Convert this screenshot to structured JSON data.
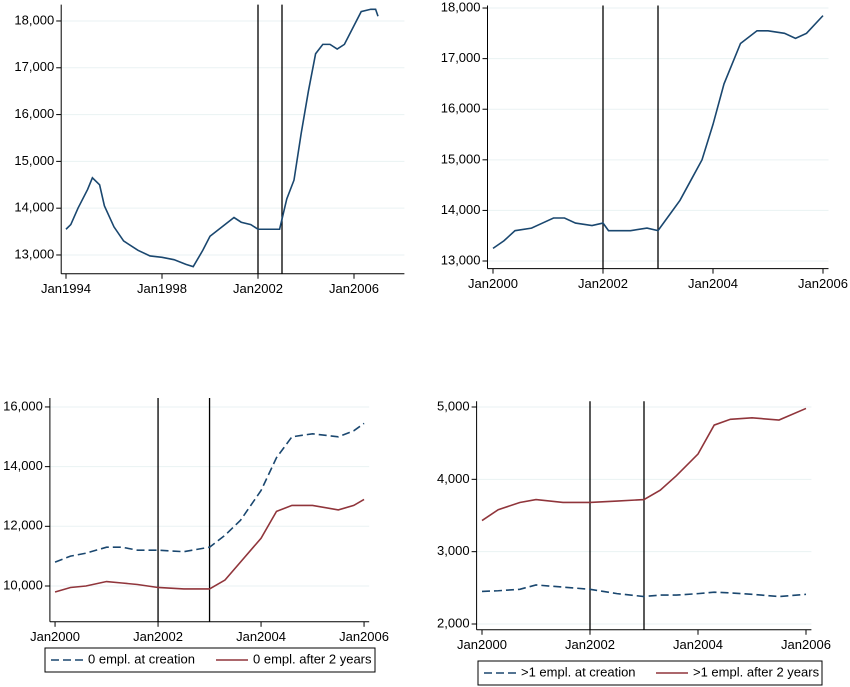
{
  "chart_data": [
    {
      "type": "line",
      "x": [
        1994.0,
        1994.2,
        1994.5,
        1994.9,
        1995.1,
        1995.4,
        1995.6,
        1996.0,
        1996.4,
        1997.0,
        1997.5,
        1998.0,
        1998.5,
        1999.0,
        1999.3,
        1999.7,
        2000.0,
        2000.5,
        2001.0,
        2001.3,
        2001.7,
        2002.0,
        2002.5,
        2002.9,
        2003.2,
        2003.5,
        2003.8,
        2004.1,
        2004.4,
        2004.7,
        2005.0,
        2005.3,
        2005.6,
        2006.0,
        2006.3,
        2006.7,
        2006.9,
        2007.0
      ],
      "series": [
        {
          "color": "#1a476f",
          "values": [
            13550,
            13650,
            14000,
            14400,
            14650,
            14500,
            14050,
            13600,
            13300,
            13100,
            12980,
            12950,
            12900,
            12800,
            12750,
            13100,
            13400,
            13600,
            13800,
            13700,
            13650,
            13550,
            13550,
            13550,
            14200,
            14600,
            15600,
            16500,
            17300,
            17500,
            17500,
            17400,
            17500,
            17900,
            18200,
            18250,
            18250,
            18100
          ]
        }
      ],
      "xlim": [
        1993.8,
        2008.1
      ],
      "xticks": [
        {
          "value": 1994,
          "label": "Jan1994"
        },
        {
          "value": 1998,
          "label": "Jan1998"
        },
        {
          "value": 2002,
          "label": "Jan2002"
        },
        {
          "value": 2006,
          "label": "Jan2006"
        }
      ],
      "ylim": [
        12600,
        18350
      ],
      "yticks": [
        {
          "value": 13000,
          "label": "13,000"
        },
        {
          "value": 14000,
          "label": "14,000"
        },
        {
          "value": 15000,
          "label": "15,000"
        },
        {
          "value": 16000,
          "label": "16,000"
        },
        {
          "value": 17000,
          "label": "17,000"
        },
        {
          "value": 18000,
          "label": "18,000"
        }
      ],
      "vlines": [
        2002,
        2003
      ],
      "grid": true
    },
    {
      "type": "line",
      "x": [
        2000.0,
        2000.2,
        2000.4,
        2000.7,
        2000.9,
        2001.1,
        2001.3,
        2001.5,
        2001.8,
        2002.0,
        2002.1,
        2002.5,
        2002.8,
        2003.0,
        2003.2,
        2003.4,
        2003.6,
        2003.8,
        2004.0,
        2004.2,
        2004.5,
        2004.8,
        2005.0,
        2005.3,
        2005.5,
        2005.7,
        2006.0
      ],
      "series": [
        {
          "color": "#1a476f",
          "values": [
            13250,
            13400,
            13600,
            13650,
            13750,
            13850,
            13850,
            13750,
            13700,
            13750,
            13600,
            13600,
            13650,
            13600,
            13900,
            14200,
            14600,
            15000,
            15700,
            16500,
            17300,
            17550,
            17550,
            17500,
            17400,
            17500,
            17850
          ]
        }
      ],
      "xlim": [
        1999.9,
        2006.1
      ],
      "xticks": [
        {
          "value": 2000,
          "label": "Jan2000"
        },
        {
          "value": 2002,
          "label": "Jan2002"
        },
        {
          "value": 2004,
          "label": "Jan2004"
        },
        {
          "value": 2006,
          "label": "Jan2006"
        }
      ],
      "ylim": [
        12850,
        18050
      ],
      "yticks": [
        {
          "value": 13000,
          "label": "13,000"
        },
        {
          "value": 14000,
          "label": "14,000"
        },
        {
          "value": 15000,
          "label": "15,000"
        },
        {
          "value": 16000,
          "label": "16,000"
        },
        {
          "value": 17000,
          "label": "17,000"
        },
        {
          "value": 18000,
          "label": "18,000"
        }
      ],
      "vlines": [
        2002,
        2003
      ],
      "grid": true
    },
    {
      "type": "line",
      "x": [
        2000.0,
        2000.3,
        2000.6,
        2001.0,
        2001.3,
        2001.6,
        2002.0,
        2002.5,
        2003.0,
        2003.3,
        2003.6,
        2004.0,
        2004.3,
        2004.6,
        2005.0,
        2005.5,
        2005.8,
        2006.0
      ],
      "series": [
        {
          "name": "0 empl. at creation",
          "color": "#1a476f",
          "dashed": true,
          "values": [
            10800,
            11000,
            11100,
            11300,
            11300,
            11200,
            11200,
            11150,
            11300,
            11700,
            12200,
            13200,
            14300,
            15000,
            15100,
            15000,
            15200,
            15450
          ]
        },
        {
          "name": "0 empl. after 2 years",
          "color": "#90353b",
          "dashed": false,
          "values": [
            9800,
            9950,
            10000,
            10150,
            10100,
            10050,
            9950,
            9900,
            9900,
            10200,
            10800,
            11600,
            12500,
            12700,
            12700,
            12550,
            12700,
            12900
          ]
        }
      ],
      "xlim": [
        1999.9,
        2006.1
      ],
      "xticks": [
        {
          "value": 2000,
          "label": "Jan2000"
        },
        {
          "value": 2002,
          "label": "Jan2002"
        },
        {
          "value": 2004,
          "label": "Jan2004"
        },
        {
          "value": 2006,
          "label": "Jan2006"
        }
      ],
      "ylim": [
        8800,
        16300
      ],
      "yticks": [
        {
          "value": 10000,
          "label": "10,000"
        },
        {
          "value": 12000,
          "label": "12,000"
        },
        {
          "value": 14000,
          "label": "14,000"
        },
        {
          "value": 16000,
          "label": "16,000"
        }
      ],
      "vlines": [
        2002,
        2003
      ],
      "grid": true,
      "legend": "bottom"
    },
    {
      "type": "line",
      "x": [
        2000.0,
        2000.3,
        2000.7,
        2001.0,
        2001.5,
        2002.0,
        2002.5,
        2003.0,
        2003.3,
        2003.6,
        2004.0,
        2004.3,
        2004.6,
        2005.0,
        2005.5,
        2006.0
      ],
      "series": [
        {
          "name": ">1 empl. at creation",
          "color": "#1a476f",
          "dashed": true,
          "values": [
            2450,
            2460,
            2480,
            2540,
            2510,
            2480,
            2420,
            2380,
            2400,
            2400,
            2420,
            2440,
            2430,
            2410,
            2380,
            2410
          ]
        },
        {
          "name": ">1 empl. after 2 years",
          "color": "#90353b",
          "dashed": false,
          "values": [
            3430,
            3580,
            3680,
            3720,
            3680,
            3680,
            3700,
            3720,
            3850,
            4050,
            4350,
            4750,
            4830,
            4850,
            4820,
            4980
          ]
        }
      ],
      "xlim": [
        1999.9,
        2006.1
      ],
      "xticks": [
        {
          "value": 2000,
          "label": "Jan2000"
        },
        {
          "value": 2002,
          "label": "Jan2002"
        },
        {
          "value": 2004,
          "label": "Jan2004"
        },
        {
          "value": 2006,
          "label": "Jan2006"
        }
      ],
      "ylim": [
        1920,
        5080
      ],
      "yticks": [
        {
          "value": 2000,
          "label": "2,000"
        },
        {
          "value": 3000,
          "label": "3,000"
        },
        {
          "value": 4000,
          "label": "4,000"
        },
        {
          "value": 5000,
          "label": "5,000"
        }
      ],
      "vlines": [
        2002,
        2003
      ],
      "grid": true,
      "legend": "bottom"
    }
  ]
}
